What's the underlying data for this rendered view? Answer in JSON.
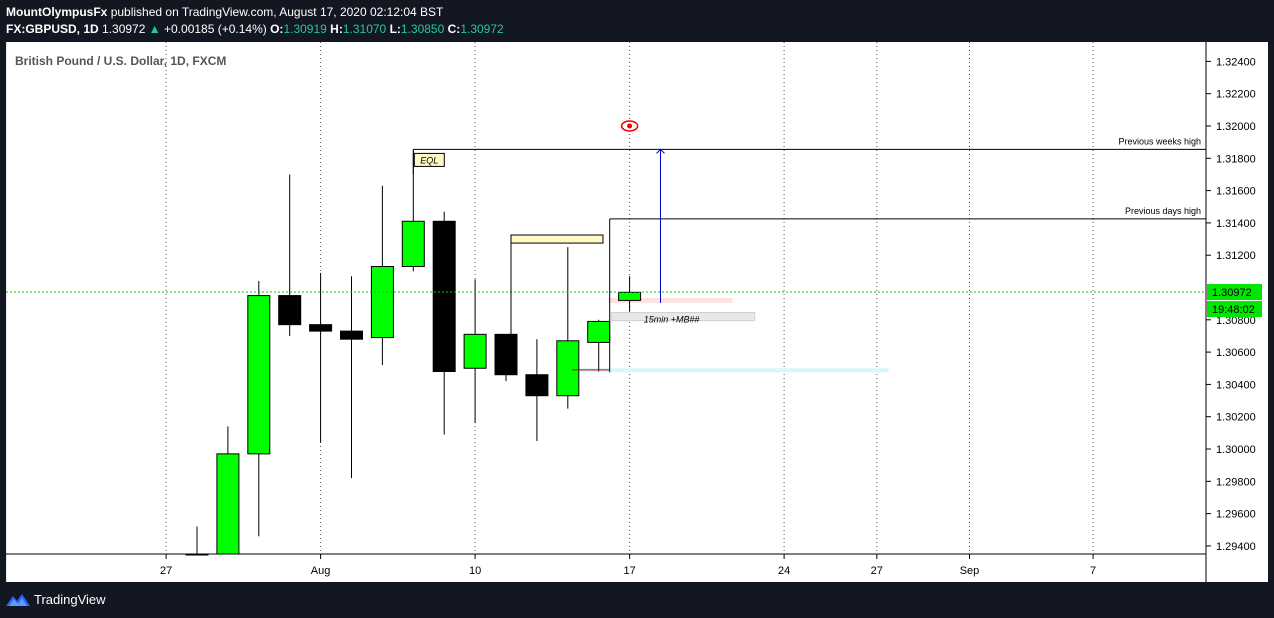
{
  "header": {
    "author": "MountOlympusFx",
    "published_text": "published on TradingView.com, August 17, 2020 02:12:04 BST",
    "symbol": "FX:GBPUSD, 1D",
    "last_price": "1.30972",
    "change_arrow": "▲",
    "change": "+0.00185 (+0.14%)",
    "o_label": "O:",
    "o_value": "1.30919",
    "h_label": "H:",
    "h_value": "1.31070",
    "l_label": "L:",
    "l_value": "1.30850",
    "c_label": "C:",
    "c_value": "1.30972"
  },
  "footer": {
    "brand": "TradingView"
  },
  "colors": {
    "up": "#00ff00",
    "down": "#000000",
    "accent": "#26c6a3",
    "current_line": "#00c800",
    "badge": "#00e600"
  },
  "chart_data": {
    "type": "candlestick",
    "title": "British Pound / U.S. Dollar, 1D, FXCM",
    "ylim": [
      1.2935,
      1.3252
    ],
    "y_ticks": [
      "1.32400",
      "1.32200",
      "1.32000",
      "1.31800",
      "1.31600",
      "1.31400",
      "1.31200",
      "1.30800",
      "1.30600",
      "1.30400",
      "1.30200",
      "1.30000",
      "1.29800",
      "1.29600",
      "1.29400"
    ],
    "x_ticks": [
      {
        "label": "27",
        "i": -1
      },
      {
        "label": "Aug",
        "i": 4
      },
      {
        "label": "10",
        "i": 9
      },
      {
        "label": "17",
        "i": 14
      },
      {
        "label": "24",
        "i": 19
      },
      {
        "label": "27",
        "i": 22
      },
      {
        "label": "Sep",
        "i": 25
      },
      {
        "label": "7",
        "i": 29
      }
    ],
    "candles": [
      {
        "i": 0,
        "o": 1.2935,
        "h": 1.2952,
        "l": 1.2935,
        "c": 1.2935
      },
      {
        "i": 1,
        "o": 1.2935,
        "h": 1.3014,
        "l": 1.2935,
        "c": 1.2997
      },
      {
        "i": 2,
        "o": 1.2997,
        "h": 1.3104,
        "l": 1.2946,
        "c": 1.3095
      },
      {
        "i": 3,
        "o": 1.3095,
        "h": 1.317,
        "l": 1.307,
        "c": 1.3077
      },
      {
        "i": 4,
        "o": 1.3077,
        "h": 1.3109,
        "l": 1.3004,
        "c": 1.3073
      },
      {
        "i": 5,
        "o": 1.3073,
        "h": 1.3107,
        "l": 1.2982,
        "c": 1.3068
      },
      {
        "i": 6,
        "o": 1.3069,
        "h": 1.3163,
        "l": 1.3052,
        "c": 1.3113
      },
      {
        "i": 7,
        "o": 1.3113,
        "h": 1.3185,
        "l": 1.311,
        "c": 1.3141
      },
      {
        "i": 8,
        "o": 1.3141,
        "h": 1.3147,
        "l": 1.3009,
        "c": 1.3048
      },
      {
        "i": 9,
        "o": 1.305,
        "h": 1.3105,
        "l": 1.3016,
        "c": 1.3071
      },
      {
        "i": 10,
        "o": 1.3071,
        "h": 1.3071,
        "l": 1.3042,
        "c": 1.3046
      },
      {
        "i": 11,
        "o": 1.3046,
        "h": 1.3068,
        "l": 1.3005,
        "c": 1.3033
      },
      {
        "i": 12,
        "o": 1.3033,
        "h": 1.3125,
        "l": 1.3025,
        "c": 1.3067
      },
      {
        "i": 13,
        "o": 1.3066,
        "h": 1.308,
        "l": 1.3048,
        "c": 1.3079
      },
      {
        "i": 14,
        "o": 1.3092,
        "h": 1.3107,
        "l": 1.3085,
        "c": 1.3097
      }
    ],
    "current_price": 1.30972,
    "current_price_label": "1.30972",
    "countdown_label": "19:48:02",
    "annotations": {
      "prev_week_high": {
        "price": 1.31855,
        "label": "Previous weeks high"
      },
      "prev_day_high": {
        "price": 1.31425,
        "label": "Previous days high"
      },
      "eql_label": "EQL",
      "mb_label": "15min +MB##"
    }
  }
}
